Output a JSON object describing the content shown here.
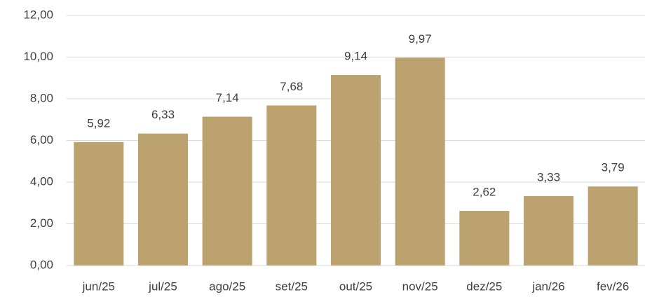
{
  "chart_data": {
    "type": "bar",
    "categories": [
      "jun/25",
      "jul/25",
      "ago/25",
      "set/25",
      "out/25",
      "nov/25",
      "dez/25",
      "jan/26",
      "fev/26"
    ],
    "values": [
      5.92,
      6.33,
      7.14,
      7.68,
      9.14,
      9.97,
      2.62,
      3.33,
      3.79
    ],
    "value_labels": [
      "5,92",
      "6,33",
      "7,14",
      "7,68",
      "9,14",
      "9,97",
      "2,62",
      "3,33",
      "3,79"
    ],
    "color": "#bca26f",
    "ylim": [
      0,
      12
    ],
    "yticks": [
      {
        "value": 0,
        "label": "0,00"
      },
      {
        "value": 2,
        "label": "2,00"
      },
      {
        "value": 4,
        "label": "4,00"
      },
      {
        "value": 6,
        "label": "6,00"
      },
      {
        "value": 8,
        "label": "8,00"
      },
      {
        "value": 10,
        "label": "10,00"
      },
      {
        "value": 12,
        "label": "12,00"
      }
    ],
    "grid": true
  }
}
